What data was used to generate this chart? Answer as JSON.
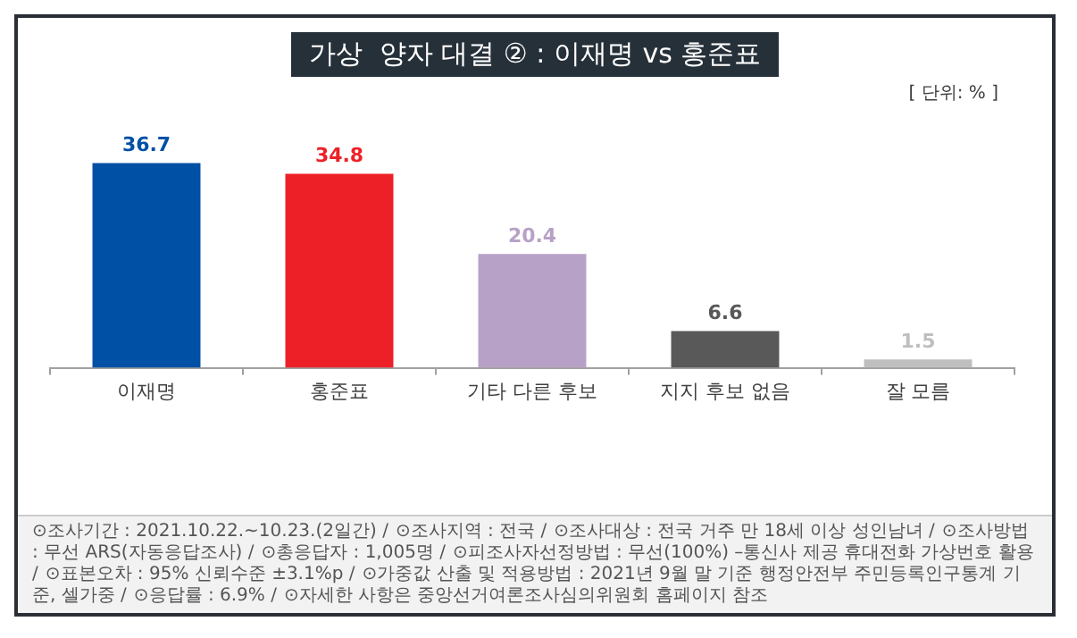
{
  "chart_data": {
    "type": "bar",
    "title": "가상  양자 대결 ② : 이재명 vs 홍준표",
    "subtitle": "[ 단위: % ]",
    "categories": [
      "이재명",
      "홍준표",
      "기타 다른 후보",
      "지지 후보 없음",
      "잘 모름"
    ],
    "values": [
      36.7,
      34.8,
      20.4,
      6.6,
      1.5
    ],
    "colors": [
      "#0050a5",
      "#ee2027",
      "#b8a1c6",
      "#595959",
      "#bfbfbf"
    ],
    "data_labels": true,
    "legend": false,
    "grid": false,
    "tick_labels": "x",
    "annotations": [
      "⊙조사기간 : 2021.10.22.~10.23.(2일간) /",
      "⊙조사지역 : 전국 /",
      "⊙조사대상 : 전국 거주 만 18세 이상 성인남녀 /",
      "⊙조사방법 : 무선 ARS(자동응답조사) /",
      "⊙총응답자 : 1,005명 /",
      "⊙피조사자선정방법 : 무선(100%) –통신사 제공 휴대전화 가상번호 활용 /",
      "⊙표본오차 : 95% 신뢰수준 ±3.1%p /",
      "⊙가중값 산출 및 적용방법 : 2021년 9월 말 기준 행정안전부 주민등록인구통계 기준, 셀가중 /",
      "⊙응답률 : 6.9% /",
      "⊙자세한 사항은 중앙선거여론조사심의위원회 홈페이지 참조"
    ]
  }
}
